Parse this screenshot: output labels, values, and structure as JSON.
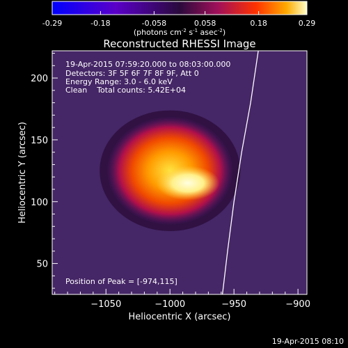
{
  "colorbar": {
    "ticks": [
      -0.29,
      -0.18,
      -0.058,
      0.058,
      0.18,
      0.29
    ],
    "tick_labels": [
      "-0.29",
      "-0.18",
      "-0.058",
      "0.058",
      "0.18",
      "0.29"
    ],
    "range": [
      -0.29,
      0.29
    ],
    "units_main": "(photons cm",
    "units_sup1": "-2",
    "units_mid": " s",
    "units_sup2": "-1",
    "units_mid2": " asec",
    "units_sup3": "-2",
    "units_end": ")"
  },
  "chart_data": {
    "type": "heatmap",
    "title": "Reconstructed RHESSI Image",
    "xlabel": "Heliocentric X (arcsec)",
    "ylabel": "Heliocentric Y (arcsec)",
    "xlim": [
      -1092,
      -893
    ],
    "ylim": [
      25,
      222
    ],
    "xticks": [
      -1050,
      -1000,
      -950,
      -900
    ],
    "xtick_labels": [
      "−1050",
      "−1000",
      "−950",
      "−900"
    ],
    "yticks": [
      50,
      100,
      150,
      200
    ],
    "ytick_labels": [
      "50",
      "100",
      "150",
      "200"
    ],
    "annotations": [
      "19-Apr-2015 07:59:20.000 to 08:03:00.000",
      "Detectors: 3F 5F 6F 7F 8F 9F, Att 0",
      "Energy Range: 3.0 - 6.0 keV",
      "Clean    Total counts: 5.42E+04"
    ],
    "peak_label": "Position of Peak = [-974,115]",
    "peak": [
      -974,
      115
    ],
    "source": {
      "center": [
        -1000,
        125
      ],
      "radius_x": 45,
      "radius_y": 40,
      "peak_value": 0.29
    },
    "limb": [
      [
        -931,
        222
      ],
      [
        -937,
        180
      ],
      [
        -944,
        140
      ],
      [
        -950,
        100
      ],
      [
        -955,
        60
      ],
      [
        -959,
        25
      ]
    ]
  },
  "footer": {
    "timestamp": "19-Apr-2015 08:10"
  },
  "colors": {
    "background": "#000000",
    "text": "#ffffff"
  }
}
